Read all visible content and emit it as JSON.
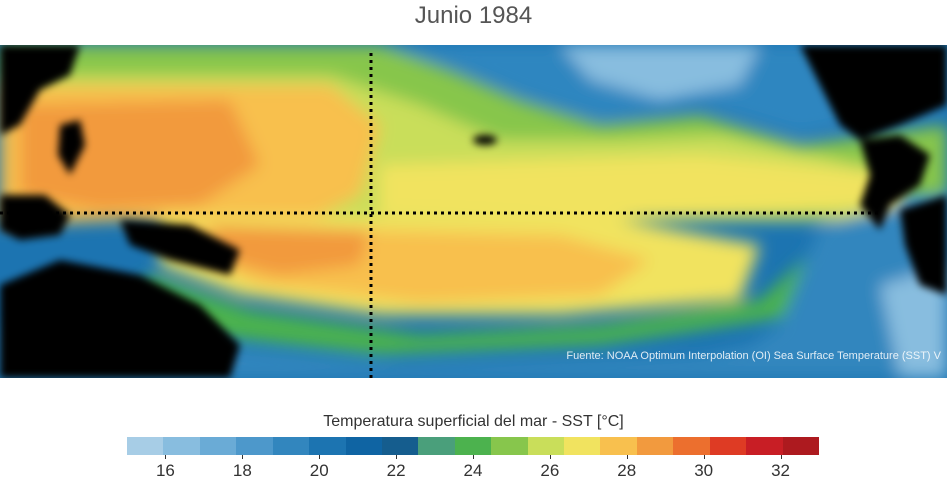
{
  "title": "Junio 1984",
  "source": "Fuente: NOAA Optimum Interpolation (OI) Sea Surface Temperature (SST) V",
  "colorbar": {
    "label": "Temperatura superficial del mar - SST  [°C]",
    "min": 15,
    "max": 33,
    "colors": [
      "#a7cde6",
      "#88bddf",
      "#6aabd6",
      "#4d98cb",
      "#3286be",
      "#1c74b1",
      "#0f64a3",
      "#155d8e",
      "#4a9f7b",
      "#4cb24e",
      "#87c64c",
      "#c9de5a",
      "#f1e35f",
      "#f8c04e",
      "#f29a3e",
      "#ec6f2e",
      "#de3b24",
      "#c81e25",
      "#ad1a1f"
    ],
    "ticks": [
      16,
      18,
      20,
      22,
      24,
      26,
      28,
      30,
      32
    ]
  }
}
